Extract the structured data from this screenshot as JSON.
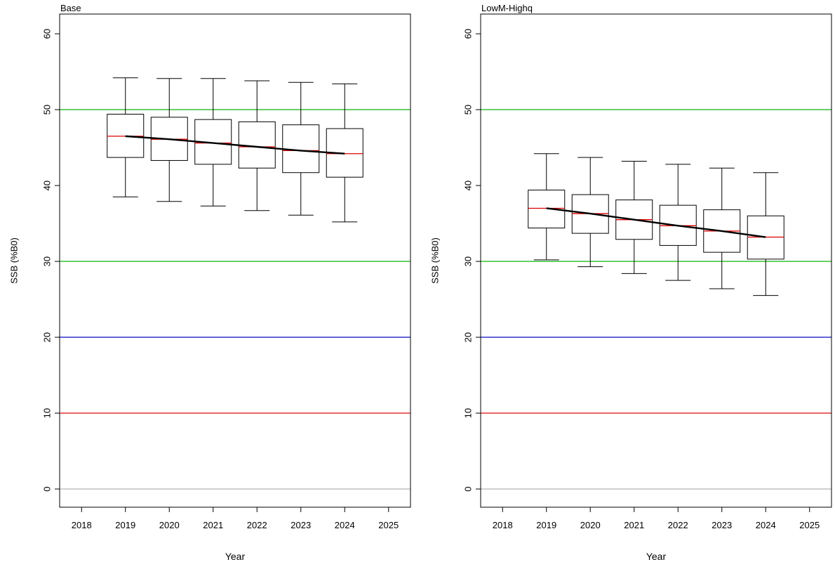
{
  "chart_data": [
    {
      "type": "box",
      "title": "Base",
      "xlabel": "Year",
      "ylabel": "SSB (%B0)",
      "xlim": [
        2017.5,
        2025.5
      ],
      "ylim": [
        -2.4,
        62.6
      ],
      "xticks": [
        2018,
        2019,
        2020,
        2021,
        2022,
        2023,
        2024,
        2025
      ],
      "yticks": [
        0,
        10,
        20,
        30,
        40,
        50,
        60
      ],
      "grid": false,
      "reference_lines": [
        {
          "y": 50,
          "color": "#22bb22"
        },
        {
          "y": 30,
          "color": "#22bb22"
        },
        {
          "y": 20,
          "color": "#2222cc"
        },
        {
          "y": 10,
          "color": "#dd2222"
        },
        {
          "y": 0,
          "color": "#bbbbbb"
        }
      ],
      "boxes": [
        {
          "year": 2019,
          "whisker_low": 38.5,
          "q1": 43.7,
          "median": 46.5,
          "q3": 49.4,
          "whisker_high": 54.2
        },
        {
          "year": 2020,
          "whisker_low": 37.9,
          "q1": 43.3,
          "median": 46.1,
          "q3": 49.0,
          "whisker_high": 54.1
        },
        {
          "year": 2021,
          "whisker_low": 37.3,
          "q1": 42.8,
          "median": 45.6,
          "q3": 48.7,
          "whisker_high": 54.1
        },
        {
          "year": 2022,
          "whisker_low": 36.7,
          "q1": 42.3,
          "median": 45.1,
          "q3": 48.4,
          "whisker_high": 53.8
        },
        {
          "year": 2023,
          "whisker_low": 36.1,
          "q1": 41.7,
          "median": 44.6,
          "q3": 48.0,
          "whisker_high": 53.6
        },
        {
          "year": 2024,
          "whisker_low": 35.2,
          "q1": 41.1,
          "median": 44.2,
          "q3": 47.5,
          "whisker_high": 53.4
        }
      ],
      "median_line_color": "#dd0000",
      "trend_color": "#000000"
    },
    {
      "type": "box",
      "title": "LowM-Highq",
      "xlabel": "Year",
      "ylabel": "SSB (%B0)",
      "xlim": [
        2017.5,
        2025.5
      ],
      "ylim": [
        -2.4,
        62.6
      ],
      "xticks": [
        2018,
        2019,
        2020,
        2021,
        2022,
        2023,
        2024,
        2025
      ],
      "yticks": [
        0,
        10,
        20,
        30,
        40,
        50,
        60
      ],
      "grid": false,
      "reference_lines": [
        {
          "y": 50,
          "color": "#22bb22"
        },
        {
          "y": 30,
          "color": "#22bb22"
        },
        {
          "y": 20,
          "color": "#2222cc"
        },
        {
          "y": 10,
          "color": "#dd2222"
        },
        {
          "y": 0,
          "color": "#bbbbbb"
        }
      ],
      "boxes": [
        {
          "year": 2019,
          "whisker_low": 30.2,
          "q1": 34.4,
          "median": 37.0,
          "q3": 39.4,
          "whisker_high": 44.2
        },
        {
          "year": 2020,
          "whisker_low": 29.3,
          "q1": 33.7,
          "median": 36.3,
          "q3": 38.8,
          "whisker_high": 43.7
        },
        {
          "year": 2021,
          "whisker_low": 28.4,
          "q1": 32.9,
          "median": 35.5,
          "q3": 38.1,
          "whisker_high": 43.2
        },
        {
          "year": 2022,
          "whisker_low": 27.5,
          "q1": 32.1,
          "median": 34.7,
          "q3": 37.4,
          "whisker_high": 42.8
        },
        {
          "year": 2023,
          "whisker_low": 26.4,
          "q1": 31.2,
          "median": 34.0,
          "q3": 36.8,
          "whisker_high": 42.3
        },
        {
          "year": 2024,
          "whisker_low": 25.5,
          "q1": 30.3,
          "median": 33.2,
          "q3": 36.0,
          "whisker_high": 41.7
        }
      ],
      "median_line_color": "#dd0000",
      "trend_color": "#000000"
    }
  ]
}
